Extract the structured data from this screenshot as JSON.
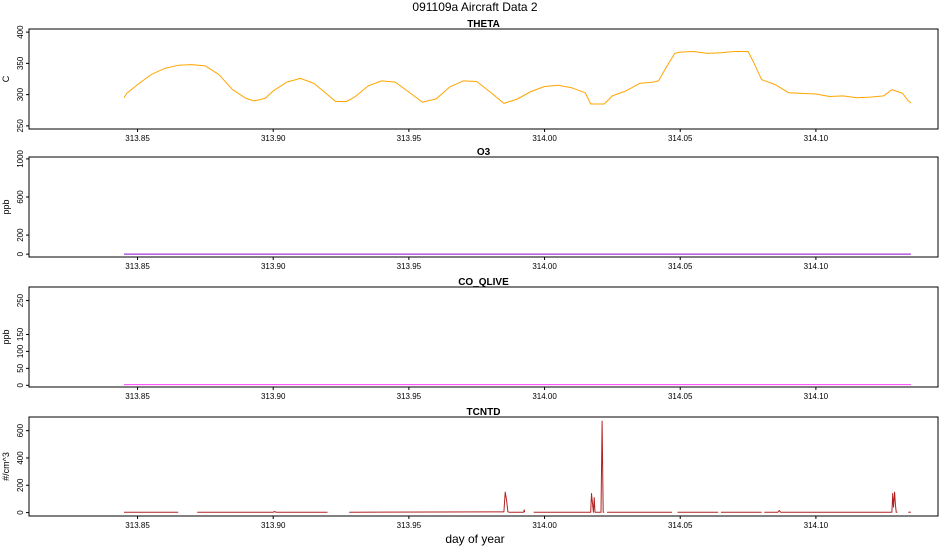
{
  "title": "091109a   Aircraft Data 2",
  "xlabel": "day of year",
  "chart_data": [
    {
      "type": "line",
      "title": "THETA",
      "ylabel": "C",
      "xlim": [
        313.81,
        314.145
      ],
      "ylim": [
        245,
        405
      ],
      "xticks": [
        "313.85",
        "313.90",
        "313.95",
        "314.00",
        "314.05",
        "314.10"
      ],
      "yticks": [
        "250",
        "300",
        "350",
        "400"
      ],
      "color": "#ffa500",
      "series": [
        {
          "x": [
            313.845,
            313.846,
            313.85,
            313.855,
            313.86,
            313.865,
            313.87,
            313.875,
            313.88,
            313.885,
            313.89,
            313.893,
            313.897,
            313.9,
            313.905,
            313.91,
            313.915,
            313.92,
            313.923,
            313.927,
            313.93,
            313.935,
            313.94,
            313.945,
            313.95,
            313.955,
            313.96,
            313.965,
            313.97,
            313.975,
            313.98,
            313.985,
            313.99,
            313.995,
            314.0,
            314.005,
            314.01,
            314.015,
            314.017,
            314.022,
            314.025,
            314.03,
            314.035,
            314.04,
            314.042,
            314.045,
            314.048,
            314.05,
            314.055,
            314.06,
            314.065,
            314.07,
            314.075,
            314.077,
            314.08,
            314.085,
            314.09,
            314.095,
            314.1,
            314.105,
            314.11,
            314.115,
            314.12,
            314.125,
            314.128,
            314.132,
            314.134,
            314.135
          ],
          "y": [
            295,
            302,
            316,
            332,
            342,
            347,
            348,
            346,
            332,
            308,
            294,
            290,
            294,
            306,
            320,
            326,
            318,
            300,
            289,
            289,
            296,
            314,
            322,
            320,
            304,
            288,
            293,
            312,
            322,
            321,
            304,
            286,
            293,
            305,
            313,
            315,
            311,
            303,
            285,
            285,
            298,
            306,
            318,
            320,
            322,
            345,
            366,
            368,
            369,
            366,
            367,
            369,
            369,
            352,
            324,
            316,
            303,
            302,
            301,
            297,
            298,
            295,
            296,
            298,
            308,
            302,
            290,
            287
          ]
        }
      ]
    },
    {
      "type": "line",
      "title": "O3",
      "ylabel": "ppb",
      "xlim": [
        313.81,
        314.145
      ],
      "ylim": [
        -30,
        1020
      ],
      "xticks": [
        "313.85",
        "313.90",
        "313.95",
        "314.00",
        "314.05",
        "314.10"
      ],
      "yticks": [
        "0",
        "200",
        "600",
        "1000"
      ],
      "color": "#9400d3",
      "series": [
        {
          "x": [
            313.845,
            314.135
          ],
          "y": [
            0,
            0
          ]
        }
      ]
    },
    {
      "type": "line",
      "title": "CO_QLIVE",
      "ylabel": "ppb",
      "xlim": [
        313.81,
        314.145
      ],
      "ylim": [
        -5,
        290
      ],
      "xticks": [
        "313.85",
        "313.90",
        "313.95",
        "314.00",
        "314.05",
        "314.10"
      ],
      "yticks": [
        "0",
        "50",
        "100",
        "150",
        "250"
      ],
      "color": "#ff40ff",
      "series": [
        {
          "x": [
            313.845,
            314.135
          ],
          "y": [
            2,
            2
          ]
        }
      ]
    },
    {
      "type": "line",
      "title": "TCNTD",
      "ylabel": "#/cm^3",
      "xlim": [
        313.81,
        314.145
      ],
      "ylim": [
        -25,
        700
      ],
      "xticks": [
        "313.85",
        "313.90",
        "313.95",
        "314.00",
        "314.05",
        "314.10"
      ],
      "yticks": [
        "0",
        "200",
        "400",
        "600"
      ],
      "color": "#b22222",
      "series": [
        {
          "x": [
            313.845,
            313.865
          ],
          "y": [
            3,
            3
          ]
        },
        {
          "x": [
            313.872,
            313.9,
            313.9005,
            313.901,
            313.92
          ],
          "y": [
            3,
            3,
            8,
            3,
            3
          ]
        },
        {
          "x": [
            313.928,
            313.98,
            313.985,
            313.9855,
            313.986,
            313.9865,
            313.987,
            313.99,
            313.9923,
            313.9925,
            313.9927
          ],
          "y": [
            3,
            5,
            5,
            150,
            90,
            5,
            3,
            3,
            3,
            20,
            3
          ]
        },
        {
          "x": [
            313.996,
            314.017,
            314.0173,
            314.0176,
            314.018,
            314.0183,
            314.0186,
            314.02,
            314.0208,
            314.0212,
            314.0216,
            314.022
          ],
          "y": [
            3,
            3,
            140,
            80,
            3,
            110,
            3,
            3,
            3,
            670,
            3,
            3
          ]
        },
        {
          "x": [
            314.023,
            314.047
          ],
          "y": [
            3,
            3
          ]
        },
        {
          "x": [
            314.049,
            314.064
          ],
          "y": [
            3,
            3
          ]
        },
        {
          "x": [
            314.065,
            314.08
          ],
          "y": [
            3,
            3
          ]
        },
        {
          "x": [
            314.081,
            314.086,
            314.0865,
            314.087,
            314.09,
            314.1,
            314.128,
            314.1283,
            314.1286,
            314.129,
            314.1293,
            314.1296,
            314.13
          ],
          "y": [
            3,
            3,
            15,
            3,
            3,
            3,
            3,
            140,
            40,
            150,
            60,
            3,
            3
          ]
        },
        {
          "x": [
            314.134,
            314.135
          ],
          "y": [
            3,
            3
          ]
        }
      ]
    }
  ]
}
